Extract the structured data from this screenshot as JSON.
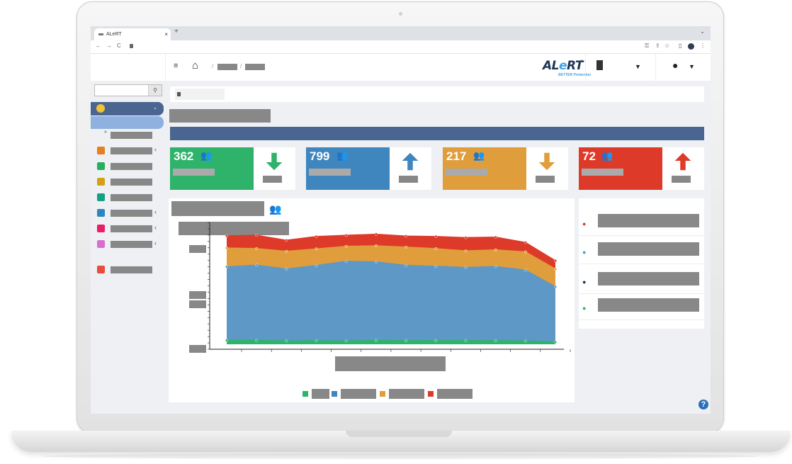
{
  "browser": {
    "tab_title": "ALeRT",
    "tab_close": "×",
    "new_tab": "+",
    "tab_menu": "⌄",
    "nav": [
      "←",
      "→",
      "C"
    ]
  },
  "header": {
    "logo_main": "AL",
    "logo_e": "e",
    "logo_rt": "RT",
    "logo_tm": "™",
    "logo_sub": "BETTER Protection",
    "breadcrumb_sep": "/",
    "hamburger": "≡"
  },
  "sidebar": {
    "search_icon": "⚲",
    "items": [
      {
        "icon": "id-card-icon",
        "color": "#e67e22"
      },
      {
        "icon": "comments-icon",
        "color": "#27ae60"
      },
      {
        "icon": "contact-book-icon",
        "color": "#d4a017"
      },
      {
        "icon": "user-share-icon",
        "color": "#16a085"
      },
      {
        "icon": "users-icon",
        "color": "#2e86c1"
      },
      {
        "icon": "gear-icon",
        "color": "#e91e63"
      },
      {
        "icon": "file-icon",
        "color": "#d96ecf"
      },
      {
        "icon": "logout-icon",
        "color": "#e74c3c"
      }
    ]
  },
  "stats": [
    {
      "value": "362",
      "color": "#2fb36b",
      "trend": "down",
      "arrow_color": "#2fb36b"
    },
    {
      "value": "799",
      "color": "#3f86bf",
      "trend": "up",
      "arrow_color": "#3f86bf"
    },
    {
      "value": "217",
      "color": "#e09d3c",
      "trend": "down",
      "arrow_color": "#e09d3c"
    },
    {
      "value": "72",
      "color": "#de3a2a",
      "trend": "up",
      "arrow_color": "#de3a2a"
    }
  ],
  "chart_data": {
    "type": "area",
    "stacked": true,
    "x": [
      1,
      2,
      3,
      4,
      5,
      6,
      7,
      8,
      9,
      10,
      11,
      12
    ],
    "ylim": [
      0,
      1050
    ],
    "series": [
      {
        "color": "#2fb36b",
        "values": [
          35,
          35,
          30,
          32,
          30,
          35,
          33,
          34,
          34,
          33,
          30,
          20
        ]
      },
      {
        "color": "#5d98c6",
        "values": [
          665,
          680,
          650,
          680,
          720,
          710,
          680,
          670,
          660,
          670,
          640,
          500
        ]
      },
      {
        "color": "#e09d3c",
        "values": [
          170,
          150,
          160,
          150,
          135,
          145,
          165,
          160,
          150,
          150,
          165,
          160
        ]
      },
      {
        "color": "#de3a2a",
        "values": [
          110,
          120,
          100,
          112,
          100,
          105,
          100,
          110,
          120,
          115,
          85,
          75
        ]
      }
    ],
    "legend_position": "bottom",
    "grid": false
  },
  "help_label": "?"
}
